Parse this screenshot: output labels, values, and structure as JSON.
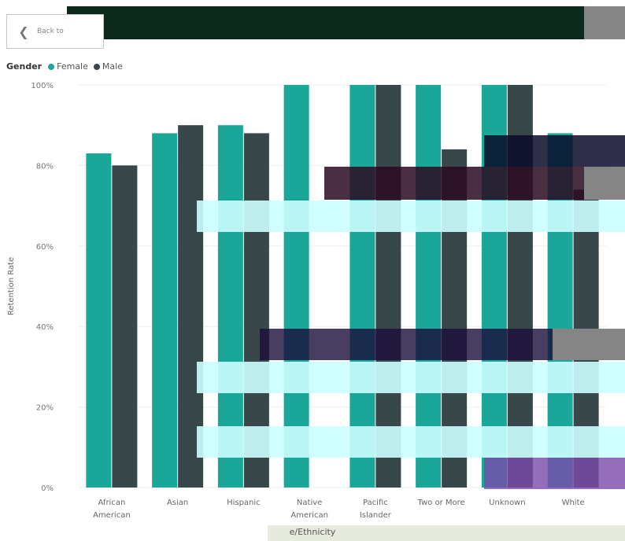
{
  "nav": {
    "back_label": "Back to",
    "back_icon": "chevron-left-icon"
  },
  "legend": {
    "title": "Gender",
    "items": [
      {
        "label": "Female",
        "color": "#1aa79a"
      },
      {
        "label": "Male",
        "color": "#37474a"
      }
    ]
  },
  "chart_data": {
    "type": "bar",
    "title": "",
    "xlabel": "e/Ethnicity",
    "ylabel": "Retention Rate",
    "ylim": [
      0,
      100
    ],
    "yticks": [
      "0%",
      "20%",
      "40%",
      "60%",
      "80%",
      "100%"
    ],
    "categories": [
      [
        "African",
        "American"
      ],
      [
        "Asian"
      ],
      [
        "Hispanic"
      ],
      [
        "Native",
        "American"
      ],
      [
        "Pacific",
        "Islander"
      ],
      [
        "Two or More"
      ],
      [
        "Unknown"
      ],
      [
        "White"
      ]
    ],
    "series": [
      {
        "name": "Female",
        "color": "#1aa79a",
        "values": [
          83,
          88,
          90,
          100,
          100,
          100,
          100,
          88
        ]
      },
      {
        "name": "Male",
        "color": "#37474a",
        "values": [
          80,
          90,
          88,
          0,
          100,
          84,
          100,
          74
        ]
      }
    ],
    "grid": true,
    "legend_position": "top-left"
  }
}
